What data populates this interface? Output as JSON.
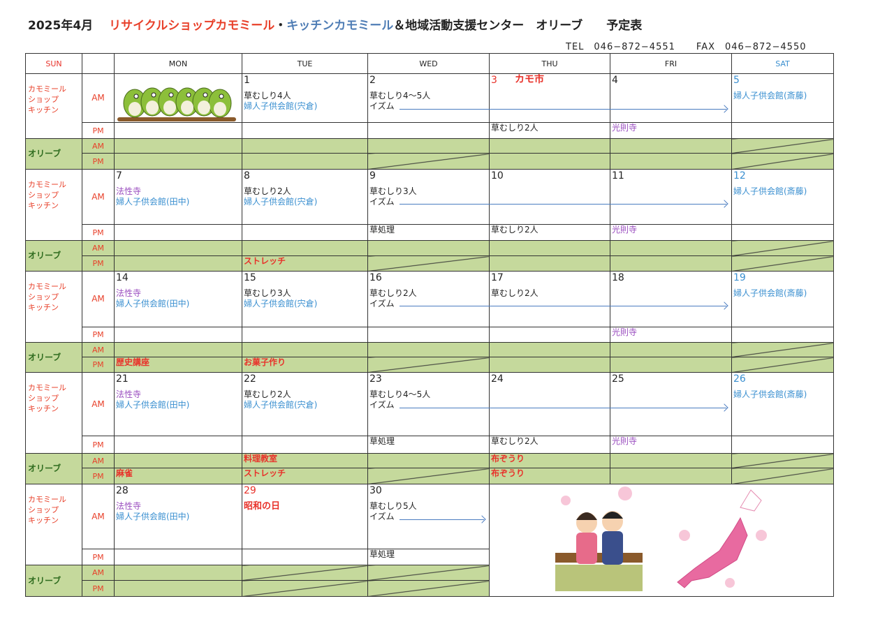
{
  "header": {
    "month": "2025年4月",
    "shop": "リサイクルショップカモミール",
    "sep": "・",
    "kitchen": "キッチンカモミール",
    "rest": "＆地域活動支援センター　オリーブ　　予定表",
    "tel": "TEL　046−872−4551",
    "fax": "FAX　046−872−4550"
  },
  "columns": [
    "SUN",
    "",
    "MON",
    "TUE",
    "WED",
    "THU",
    "FRI",
    "SAT"
  ],
  "labels": {
    "group1": "カモミール\nショップ\nキッチン",
    "group2": "オリーブ",
    "am": "AM",
    "pm": "PM"
  },
  "colors": {
    "black": "#222222",
    "blue": "#3a8fd0",
    "purple": "#9b4fc0",
    "red": "#e8322a"
  },
  "weeks": [
    {
      "days": [
        {
          "date": "",
          "am": [],
          "pm": [],
          "oam": "",
          "opm": ""
        },
        {
          "date": "1",
          "am": [
            {
              "t": "草むしり4人",
              "c": "black"
            },
            {
              "t": "婦人子供会館(宍倉)",
              "c": "blue"
            }
          ],
          "pm": [],
          "oam": "",
          "opm": ""
        },
        {
          "date": "2",
          "am": [
            {
              "t": "草むしり4〜5人",
              "c": "black"
            },
            {
              "t": "イズム",
              "c": "black"
            }
          ],
          "pm": [],
          "oam": "",
          "opm": ""
        },
        {
          "date": "3",
          "dc": "red",
          "note": "カモ市",
          "am": [],
          "pm": [
            {
              "t": "草むしり2人",
              "c": "black"
            }
          ],
          "oam": "",
          "opm": ""
        },
        {
          "date": "4",
          "am": [],
          "pm": [
            {
              "t": "光則寺",
              "c": "purple"
            }
          ],
          "oam": "",
          "opm": ""
        },
        {
          "date": "5",
          "dc": "blue",
          "am": [
            {
              "t": "婦人子供会館(斎藤)",
              "c": "blue"
            }
          ],
          "pm": [],
          "oam": "",
          "opm": ""
        }
      ]
    },
    {
      "days": [
        {
          "date": "7",
          "am": [
            {
              "t": "法性寺",
              "c": "purple"
            },
            {
              "t": "婦人子供会館(田中)",
              "c": "blue"
            }
          ],
          "pm": [],
          "oam": "",
          "opm": ""
        },
        {
          "date": "8",
          "am": [
            {
              "t": "草むしり2人",
              "c": "black"
            },
            {
              "t": "婦人子供会館(宍倉)",
              "c": "blue"
            }
          ],
          "pm": [],
          "oam": "",
          "opm": "ストレッチ"
        },
        {
          "date": "9",
          "am": [
            {
              "t": "草むしり3人",
              "c": "black"
            },
            {
              "t": "イズム",
              "c": "black"
            }
          ],
          "pm": [
            {
              "t": "草処理",
              "c": "black"
            }
          ],
          "oam": "",
          "opm": ""
        },
        {
          "date": "10",
          "am": [],
          "pm": [
            {
              "t": "草むしり2人",
              "c": "black"
            }
          ],
          "oam": "",
          "opm": ""
        },
        {
          "date": "11",
          "am": [],
          "pm": [
            {
              "t": "光則寺",
              "c": "purple"
            }
          ],
          "oam": "",
          "opm": ""
        },
        {
          "date": "12",
          "dc": "blue",
          "am": [
            {
              "t": "婦人子供会館(斎藤)",
              "c": "blue"
            }
          ],
          "pm": [],
          "oam": "",
          "opm": ""
        }
      ]
    },
    {
      "days": [
        {
          "date": "14",
          "am": [
            {
              "t": "法性寺",
              "c": "purple"
            },
            {
              "t": "婦人子供会館(田中)",
              "c": "blue"
            }
          ],
          "pm": [],
          "oam": "",
          "opm": "歴史講座"
        },
        {
          "date": "15",
          "am": [
            {
              "t": "草むしり3人",
              "c": "black"
            },
            {
              "t": "婦人子供会館(宍倉)",
              "c": "blue"
            }
          ],
          "pm": [],
          "oam": "",
          "opm": "お菓子作り"
        },
        {
          "date": "16",
          "am": [
            {
              "t": "草むしり2人",
              "c": "black"
            },
            {
              "t": "イズム",
              "c": "black"
            }
          ],
          "pm": [],
          "oam": "",
          "opm": ""
        },
        {
          "date": "17",
          "am": [
            {
              "t": "草むしり2人",
              "c": "black"
            }
          ],
          "pm": [],
          "oam": "",
          "opm": ""
        },
        {
          "date": "18",
          "am": [],
          "pm": [
            {
              "t": "光則寺",
              "c": "purple"
            }
          ],
          "oam": "",
          "opm": ""
        },
        {
          "date": "19",
          "dc": "blue",
          "am": [
            {
              "t": "婦人子供会館(斎藤)",
              "c": "blue"
            }
          ],
          "pm": [],
          "oam": "",
          "opm": ""
        }
      ]
    },
    {
      "days": [
        {
          "date": "21",
          "am": [
            {
              "t": "法性寺",
              "c": "purple"
            },
            {
              "t": "婦人子供会館(田中)",
              "c": "blue"
            }
          ],
          "pm": [],
          "oam": "",
          "opm": "麻雀"
        },
        {
          "date": "22",
          "am": [
            {
              "t": "草むしり2人",
              "c": "black"
            },
            {
              "t": "婦人子供会館(宍倉)",
              "c": "blue"
            }
          ],
          "pm": [],
          "oam": "料理教室",
          "opm": "ストレッチ"
        },
        {
          "date": "23",
          "am": [
            {
              "t": "草むしり4〜5人",
              "c": "black"
            },
            {
              "t": "イズム",
              "c": "black"
            }
          ],
          "pm": [
            {
              "t": "草処理",
              "c": "black"
            }
          ],
          "oam": "",
          "opm": ""
        },
        {
          "date": "24",
          "am": [],
          "pm": [
            {
              "t": "草むしり2人",
              "c": "black"
            }
          ],
          "oam": "布ぞうり",
          "opm": "布ぞうり"
        },
        {
          "date": "25",
          "am": [],
          "pm": [
            {
              "t": "光則寺",
              "c": "purple"
            }
          ],
          "oam": "",
          "opm": ""
        },
        {
          "date": "26",
          "dc": "blue",
          "am": [
            {
              "t": "婦人子供会館(斎藤)",
              "c": "blue"
            }
          ],
          "pm": [],
          "oam": "",
          "opm": ""
        }
      ]
    },
    {
      "days": [
        {
          "date": "28",
          "am": [
            {
              "t": "法性寺",
              "c": "purple"
            },
            {
              "t": "婦人子供会館(田中)",
              "c": "blue"
            }
          ],
          "pm": [],
          "oam": "",
          "opm": ""
        },
        {
          "date": "29",
          "dc": "red",
          "am": [
            {
              "t": "昭和の日",
              "c": "red"
            }
          ],
          "pm": [],
          "oam": "",
          "opm": ""
        },
        {
          "date": "30",
          "am": [
            {
              "t": "草むしり5人",
              "c": "black"
            },
            {
              "t": "イズム",
              "c": "black"
            }
          ],
          "pm": [
            {
              "t": "草処理",
              "c": "black"
            }
          ],
          "oam": "",
          "opm": ""
        }
      ]
    }
  ]
}
